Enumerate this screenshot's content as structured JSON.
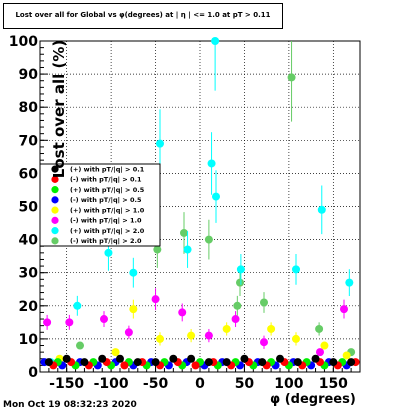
{
  "header": {
    "title": "Lost over all for Global vs φ(degrees) at | η | <= 1.0 at pT > 0.11"
  },
  "footer": {
    "datestamp": "Mon Oct 19 08:32:23 2020"
  },
  "chart_data": {
    "type": "scatter",
    "title": "Lost over all for Global vs φ(degrees) at | η | <= 1.0 at pT > 0.11",
    "xlabel": "φ (degrees)",
    "ylabel": "Lost over all (%)",
    "xlim": [
      -180,
      180
    ],
    "ylim": [
      0,
      100
    ],
    "xticks": [
      -150,
      -100,
      -50,
      0,
      50,
      100,
      150
    ],
    "yticks": [
      0,
      10,
      20,
      30,
      40,
      50,
      60,
      70,
      80,
      90,
      100
    ],
    "grid": true,
    "legend_position": "left-middle",
    "series": [
      {
        "name": "(+) with pT/|q| > 0.1",
        "color": "#000000",
        "points": [
          [
            -170,
            3
          ],
          [
            -150,
            4
          ],
          [
            -130,
            3
          ],
          [
            -110,
            4
          ],
          [
            -90,
            4
          ],
          [
            -70,
            3
          ],
          [
            -50,
            3
          ],
          [
            -30,
            4
          ],
          [
            -10,
            4
          ],
          [
            10,
            3
          ],
          [
            30,
            3
          ],
          [
            50,
            4
          ],
          [
            70,
            3
          ],
          [
            90,
            4
          ],
          [
            110,
            3
          ],
          [
            130,
            4
          ],
          [
            150,
            3
          ],
          [
            170,
            3
          ]
        ]
      },
      {
        "name": "(-) with pT/|q| > 0.1",
        "color": "#ff0000",
        "points": [
          [
            -165,
            2
          ],
          [
            -145,
            3
          ],
          [
            -125,
            2
          ],
          [
            -105,
            3
          ],
          [
            -85,
            2
          ],
          [
            -65,
            3
          ],
          [
            -45,
            2
          ],
          [
            -25,
            3
          ],
          [
            -5,
            2
          ],
          [
            15,
            3
          ],
          [
            35,
            2
          ],
          [
            55,
            3
          ],
          [
            75,
            2
          ],
          [
            95,
            3
          ],
          [
            115,
            2
          ],
          [
            135,
            3
          ],
          [
            155,
            2
          ],
          [
            175,
            3
          ]
        ]
      },
      {
        "name": "(+) with pT/|q| > 0.5",
        "color": "#00ee00",
        "points": [
          [
            -160,
            3
          ],
          [
            -140,
            2
          ],
          [
            -120,
            3
          ],
          [
            -100,
            2
          ],
          [
            -80,
            3
          ],
          [
            -60,
            2
          ],
          [
            -40,
            3
          ],
          [
            -20,
            2
          ],
          [
            0,
            3
          ],
          [
            20,
            2
          ],
          [
            40,
            3
          ],
          [
            60,
            2
          ],
          [
            80,
            3
          ],
          [
            100,
            2
          ],
          [
            120,
            3
          ],
          [
            140,
            2
          ],
          [
            160,
            3
          ]
        ]
      },
      {
        "name": "(-) with pT/|q| > 0.5",
        "color": "#0000ff",
        "points": [
          [
            -175,
            3
          ],
          [
            -155,
            2
          ],
          [
            -135,
            3
          ],
          [
            -115,
            2
          ],
          [
            -95,
            3
          ],
          [
            -75,
            2
          ],
          [
            -55,
            3
          ],
          [
            -35,
            2
          ],
          [
            -15,
            3
          ],
          [
            5,
            2
          ],
          [
            25,
            3
          ],
          [
            45,
            2
          ],
          [
            65,
            3
          ],
          [
            85,
            2
          ],
          [
            105,
            3
          ],
          [
            125,
            2
          ],
          [
            145,
            3
          ],
          [
            165,
            2
          ]
        ]
      },
      {
        "name": "(+) with pT/|q| > 1.0",
        "color": "#ffff00",
        "points": [
          [
            -158,
            4
          ],
          [
            -95,
            6
          ],
          [
            -75,
            19
          ],
          [
            -45,
            10
          ],
          [
            -10,
            11
          ],
          [
            30,
            13
          ],
          [
            80,
            13
          ],
          [
            108,
            10
          ],
          [
            140,
            8
          ],
          [
            165,
            5
          ]
        ]
      },
      {
        "name": "(-) with pT/|q| > 1.0",
        "color": "#ff00ff",
        "points": [
          [
            -172,
            15
          ],
          [
            -147,
            15
          ],
          [
            -108,
            16
          ],
          [
            -80,
            12
          ],
          [
            -50,
            22
          ],
          [
            -20,
            18
          ],
          [
            10,
            11
          ],
          [
            40,
            16
          ],
          [
            72,
            9
          ],
          [
            135,
            6
          ],
          [
            162,
            19
          ]
        ]
      },
      {
        "name": "(+) with pT/|q| > 2.0",
        "color": "#00ffff",
        "points": [
          [
            -168,
            3
          ],
          [
            -138,
            20
          ],
          [
            -103,
            36
          ],
          [
            -75,
            30
          ],
          [
            -45,
            69
          ],
          [
            -14,
            37
          ],
          [
            13,
            63
          ],
          [
            17,
            100
          ],
          [
            18,
            53
          ],
          [
            46,
            31
          ],
          [
            108,
            31
          ],
          [
            137,
            49
          ],
          [
            168,
            27
          ]
        ]
      },
      {
        "name": "(-) with pT/|q| > 2.0",
        "color": "#66cc66",
        "points": [
          [
            -135,
            8
          ],
          [
            -48,
            37
          ],
          [
            -18,
            42
          ],
          [
            10,
            40
          ],
          [
            42,
            20
          ],
          [
            45,
            27
          ],
          [
            72,
            21
          ],
          [
            103,
            89
          ],
          [
            134,
            13
          ],
          [
            170,
            6
          ]
        ]
      }
    ]
  }
}
